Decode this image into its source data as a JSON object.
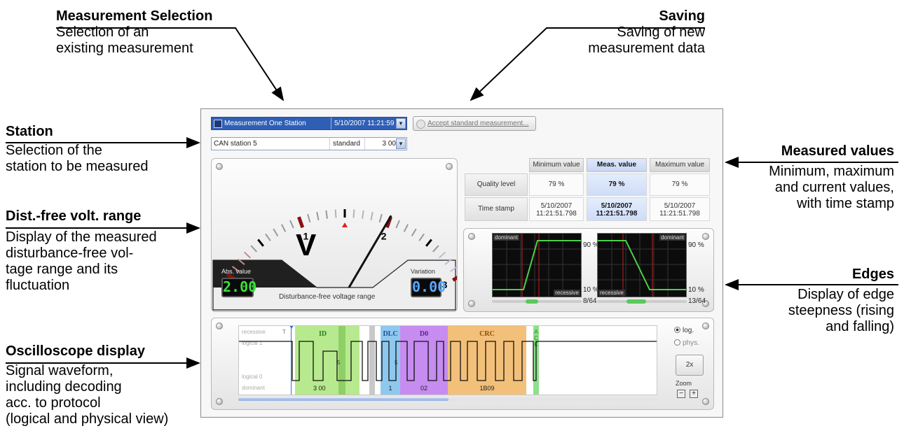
{
  "callouts": {
    "measurement_selection": {
      "title": "Measurement Selection",
      "desc": "Selection of an\nexisting measurement"
    },
    "saving": {
      "title": "Saving",
      "desc": "Saving of new\nmeasurement data"
    },
    "station": {
      "title": "Station",
      "desc": "Selection of the\nstation to be measured"
    },
    "dist_free": {
      "title": "Dist.-free volt. range",
      "desc": "Display of the measured\ndisturbance-free vol-\ntage range and its\nfluctuation"
    },
    "oscilloscope": {
      "title": "Oscilloscope display",
      "desc": "Signal waveform,\nincluding decoding\nacc. to protocol\n(logical and physical view)"
    },
    "measured_values": {
      "title": "Measured values",
      "desc": "Minimum, maximum\nand current values,\nwith time stamp"
    },
    "edges": {
      "title": "Edges",
      "desc": "Display of edge\nsteepness (rising\nand falling)"
    }
  },
  "toolbar": {
    "measurement_name": "Measurement One Station",
    "measurement_date": "5/10/2007  11:21:59",
    "accept_button": "Accept standard measurement...",
    "station_name": "CAN station 5",
    "station_mode": "standard",
    "station_value": "3 00"
  },
  "meter": {
    "scale_labels": [
      "0",
      "1",
      "2",
      "3"
    ],
    "unit": "V",
    "needle_value": 2.0,
    "abs_label": "Abs. value",
    "abs_value": "2.00",
    "variation_label": "Variation",
    "variation_value": "0.00",
    "caption": "Disturbance-free voltage range",
    "colors": {
      "abs_lcd": "#3ae03a",
      "variation_lcd": "#5aa8ff"
    }
  },
  "values_table": {
    "headers": [
      "Minimum value",
      "Meas. value",
      "Maximum value"
    ],
    "rows": [
      {
        "label": "Quality level",
        "cells": [
          "79 %",
          "79 %",
          "79 %"
        ]
      },
      {
        "label": "Time stamp",
        "cells": [
          "5/10/2007\n11:21:51.798",
          "5/10/2007\n11:21:51.798",
          "5/10/2007\n11:21:51.798"
        ]
      }
    ]
  },
  "edges": {
    "rising": {
      "top_label": "dominant",
      "bottom_label": "recessive",
      "high_pct": "90 %",
      "low_pct": "10 %",
      "ratio": "8/64"
    },
    "falling": {
      "top_label": "dominant",
      "bottom_label": "recessive",
      "high_pct": "90 %",
      "low_pct": "10 %",
      "ratio": "13/64"
    }
  },
  "oscilloscope": {
    "labels": [
      "recessive",
      "logical 1",
      "logical 0",
      "dominant"
    ],
    "fields": [
      {
        "name": "ID",
        "value": "3 00",
        "color": "#b7ea8e"
      },
      {
        "name": "DLC",
        "value": "1",
        "color": "#8fc8ef"
      },
      {
        "name": "D0",
        "value": "02",
        "color": "#c68cf0"
      },
      {
        "name": "CRC",
        "value": "1B09",
        "color": "#f3c07a"
      },
      {
        "name": "A C K",
        "value": "",
        "color": "#8ee08a"
      }
    ],
    "marker_label": "T",
    "bit_label": "5",
    "radio_log": "log.",
    "radio_phys": "phys.",
    "zoom_value": "2x",
    "zoom_label": "Zoom",
    "zoom_minus": "−",
    "zoom_plus": "+"
  }
}
